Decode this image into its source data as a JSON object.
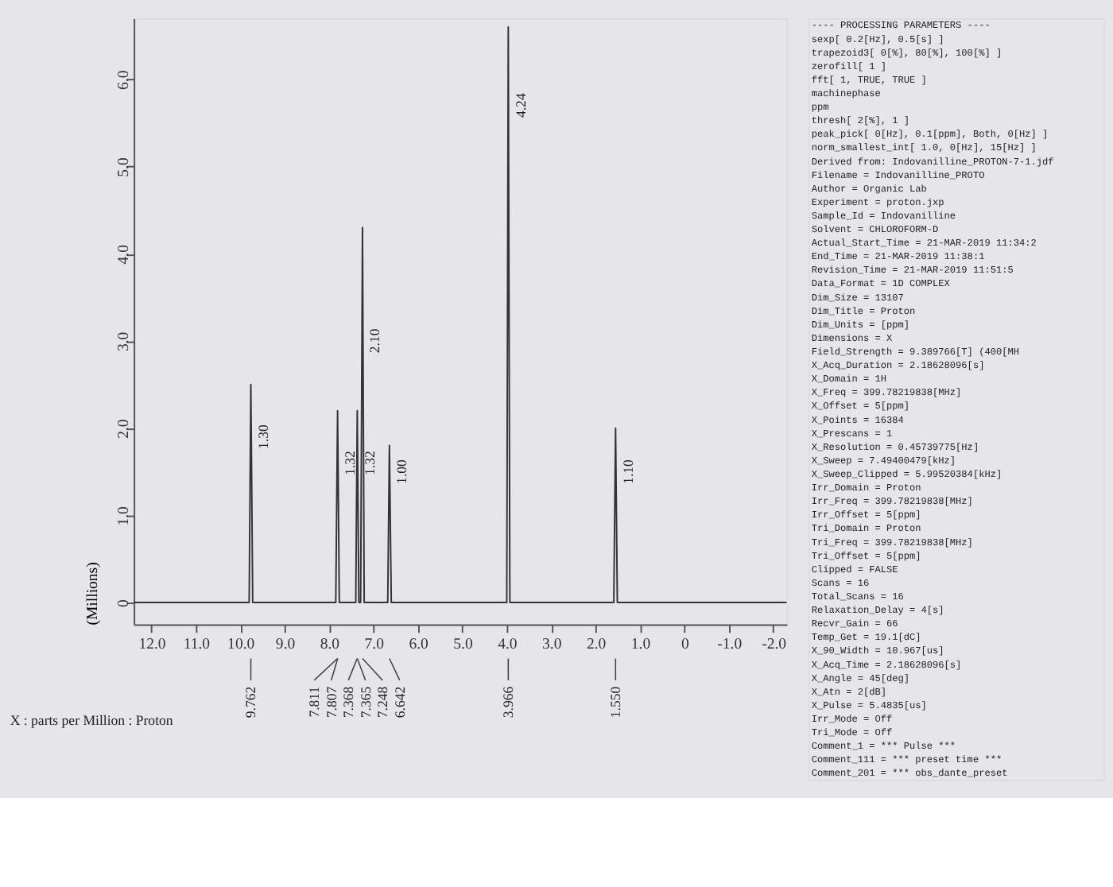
{
  "chart_data": {
    "type": "line",
    "xlabel": "X : parts per Million : Proton",
    "ylabel": "(Millions)",
    "xlim": [
      12.4,
      -2.3
    ],
    "ylim": [
      -0.25,
      6.7
    ],
    "xticks": [
      {
        "value": 12,
        "label": "12.0"
      },
      {
        "value": 11,
        "label": "11.0"
      },
      {
        "value": 10,
        "label": "10.0"
      },
      {
        "value": 9,
        "label": "9.0"
      },
      {
        "value": 8,
        "label": "8.0"
      },
      {
        "value": 7,
        "label": "7.0"
      },
      {
        "value": 6,
        "label": "6.0"
      },
      {
        "value": 5,
        "label": "5.0"
      },
      {
        "value": 4,
        "label": "4.0"
      },
      {
        "value": 3,
        "label": "3.0"
      },
      {
        "value": 2,
        "label": "2.0"
      },
      {
        "value": 1,
        "label": "1.0"
      },
      0,
      {
        "value": -1,
        "label": "-1.0"
      },
      {
        "value": -2,
        "label": "-2.0"
      }
    ],
    "yticks": [
      0,
      {
        "value": 1,
        "label": "1.0"
      },
      {
        "value": 2,
        "label": "2.0"
      },
      {
        "value": 3,
        "label": "3.0"
      },
      {
        "value": 4,
        "label": "4.0"
      },
      {
        "value": 5,
        "label": "5.0"
      },
      {
        "value": 6,
        "label": "6.0"
      }
    ],
    "grid": false,
    "marker": "none",
    "line_style": "solid",
    "series": [
      {
        "color": "#333333",
        "x": [
          12.4,
          9.8,
          9.762,
          9.72,
          7.85,
          7.809,
          7.77,
          7.4,
          7.366,
          7.33,
          7.29,
          7.248,
          7.21,
          6.68,
          6.642,
          6.6,
          4.0,
          3.966,
          3.93,
          1.59,
          1.55,
          1.51,
          -2.3
        ],
        "values": [
          0,
          0,
          2.5,
          0,
          0,
          2.2,
          0,
          0,
          2.2,
          0,
          0,
          4.3,
          0,
          0,
          1.8,
          0,
          0,
          6.6,
          0,
          0,
          2.0,
          0,
          0
        ]
      }
    ],
    "annotations": [
      {
        "text": "1.30",
        "x": 9.762,
        "y": 1.9
      },
      {
        "text": "1.32",
        "x": 7.809,
        "y": 1.6
      },
      {
        "text": "1.32",
        "x": 7.366,
        "y": 1.6
      },
      {
        "text": "2.10",
        "x": 7.248,
        "y": 3.0
      },
      {
        "text": "1.00",
        "x": 6.642,
        "y": 1.5
      },
      {
        "text": "4.24",
        "x": 3.966,
        "y": 5.7
      },
      {
        "text": "1.10",
        "x": 1.55,
        "y": 1.5
      },
      {
        "text": "9.762",
        "x": 9.762
      },
      {
        "text": "7.811",
        "x": 7.811
      },
      {
        "text": "7.807",
        "x": 7.807
      },
      {
        "text": "7.368",
        "x": 7.368
      },
      {
        "text": "7.365",
        "x": 7.365
      },
      {
        "text": "7.248",
        "x": 7.248
      },
      {
        "text": "6.642",
        "x": 6.642
      },
      {
        "text": "3.966",
        "x": 3.966
      },
      {
        "text": "1.550",
        "x": 1.55
      },
      "---- PROCESSING PARAMETERS ----",
      "sexp[ 0.2[Hz], 0.5[s] ]",
      "trapezoid3[ 0[%], 80[%], 100[%] ]",
      "zerofill[ 1 ]",
      "fft[ 1, TRUE, TRUE ]",
      "machinephase",
      "ppm",
      "thresh[ 2[%], 1 ]",
      "peak_pick[ 0[Hz], 0.1[ppm], Both, 0[Hz] ]",
      "norm_smallest_int[ 1.0, 0[Hz], 15[Hz] ]",
      "Derived from: Indovanilline_PROTON-7-1.jdf",
      "Filename = Indovanilline_PROTO",
      "Author = Organic Lab",
      "Experiment = proton.jxp",
      "Sample_Id = Indovanilline",
      "Solvent = CHLOROFORM-D",
      "Actual_Start_Time = 21-MAR-2019 11:34:2",
      "End_Time = 21-MAR-2019 11:38:1",
      "Revision_Time = 21-MAR-2019 11:51:5",
      "Data_Format = 1D COMPLEX",
      "Dim_Size = 13107",
      "Dim_Title = Proton",
      "Dim_Units = [ppm]",
      "Dimensions = X",
      "Field_Strength = 9.389766[T] (400[MH",
      "X_Acq_Duration = 2.18628096[s]",
      "X_Domain = 1H",
      "X_Freq = 399.78219838[MHz]",
      "X_Offset = 5[ppm]",
      "X_Points = 16384",
      "X_Prescans = 1",
      "X_Resolution = 0.45739775[Hz]",
      "X_Sweep = 7.49400479[kHz]",
      "X_Sweep_Clipped = 5.99520384[kHz]",
      "Irr_Domain = Proton",
      "Irr_Freq = 399.78219838[MHz]",
      "Irr_Offset = 5[ppm]",
      "Tri_Domain = Proton",
      "Tri_Freq = 399.78219838[MHz]",
      "Tri_Offset = 5[ppm]",
      "Clipped = FALSE",
      "Scans = 16",
      "Total_Scans = 16",
      "Relaxation_Delay = 4[s]",
      "Recvr_Gain = 66",
      "Temp_Get = 19.1[dC]",
      "X_90_Width = 10.967[us]",
      "X_Acq_Time = 2.18628096[s]",
      "X_Angle = 45[deg]",
      "X_Atn = 2[dB]",
      "X_Pulse = 5.4835[us]",
      "Irr_Mode = Off",
      "Tri_Mode = Off",
      "Comment_1 = *** Pulse ***",
      "Comment_111 = *** preset time ***",
      "Comment_201 = *** obs_dante_preset"
    ]
  }
}
